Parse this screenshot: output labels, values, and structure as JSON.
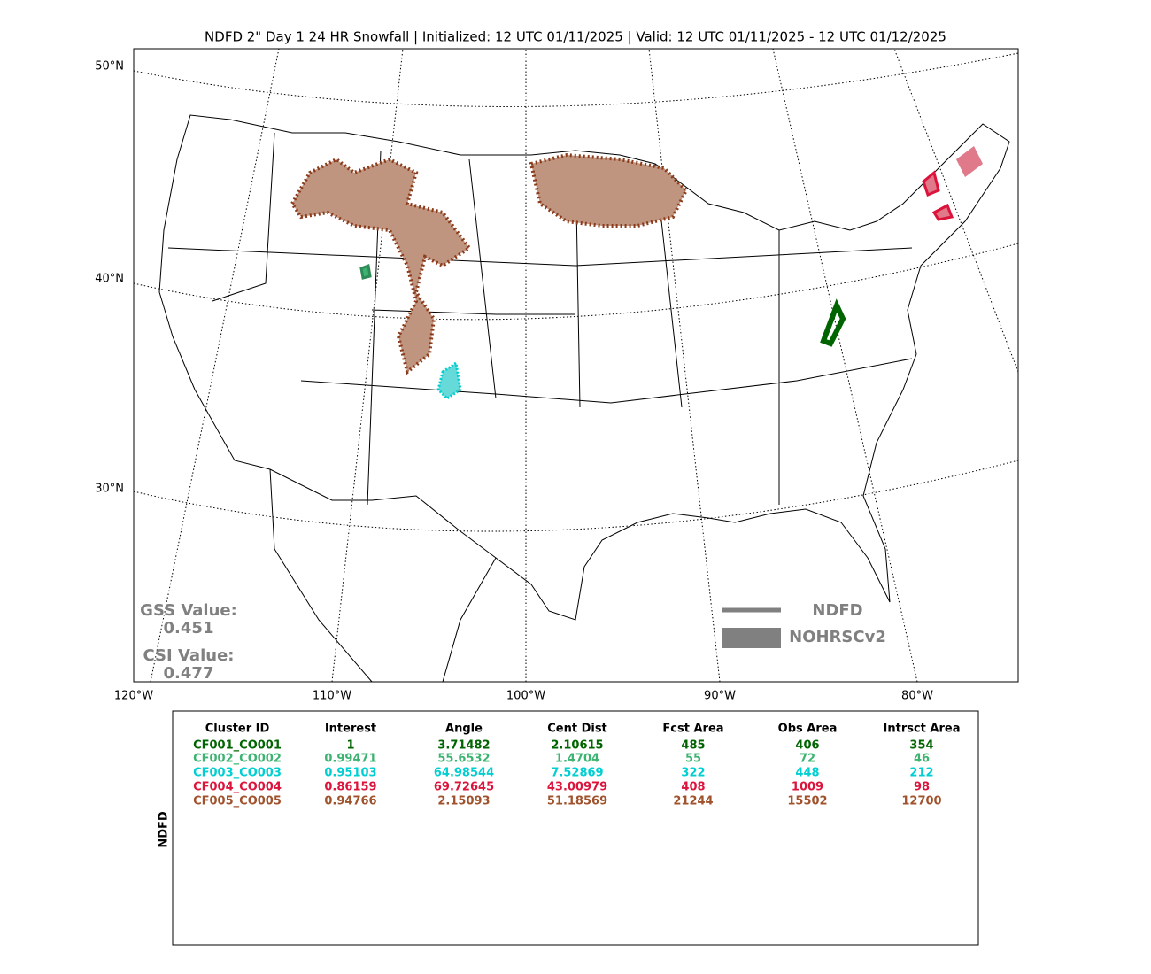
{
  "title": "NDFD 2\" Day 1 24 HR Snowfall | Initialized: 12 UTC 01/11/2025 | Valid: 12 UTC 01/11/2025 - 12 UTC 01/12/2025",
  "map": {
    "lat_labels": [
      "50°N",
      "40°N",
      "30°N"
    ],
    "lon_labels": [
      "120°W",
      "110°W",
      "100°W",
      "90°W",
      "80°W"
    ],
    "scores": {
      "gss_label": "GSS Value:",
      "gss_value": "0.451",
      "csi_label": "CSI Value:",
      "csi_value": "0.477"
    },
    "legend": {
      "line": "NDFD",
      "fill": "NOHRSCv2"
    }
  },
  "table": {
    "side_label": "NDFD",
    "headers": [
      "Cluster ID",
      "Interest",
      "Angle",
      "Cent Dist",
      "Fcst Area",
      "Obs Area",
      "Intrsct Area"
    ],
    "rows": [
      {
        "color": "#006400",
        "cells": [
          "CF001_CO001",
          "1",
          "3.71482",
          "2.10615",
          "485",
          "406",
          "354"
        ]
      },
      {
        "color": "#3cb371",
        "cells": [
          "CF002_CO002",
          "0.99471",
          "55.6532",
          "1.4704",
          "55",
          "72",
          "46"
        ]
      },
      {
        "color": "#00ced1",
        "cells": [
          "CF003_CO003",
          "0.95103",
          "64.98544",
          "7.52869",
          "322",
          "448",
          "212"
        ]
      },
      {
        "color": "#dc143c",
        "cells": [
          "CF004_CO004",
          "0.86159",
          "69.72645",
          "43.00979",
          "408",
          "1009",
          "98"
        ]
      },
      {
        "color": "#a0522d",
        "cells": [
          "CF005_CO005",
          "0.94766",
          "2.15093",
          "51.18569",
          "21244",
          "15502",
          "12700"
        ]
      }
    ]
  }
}
